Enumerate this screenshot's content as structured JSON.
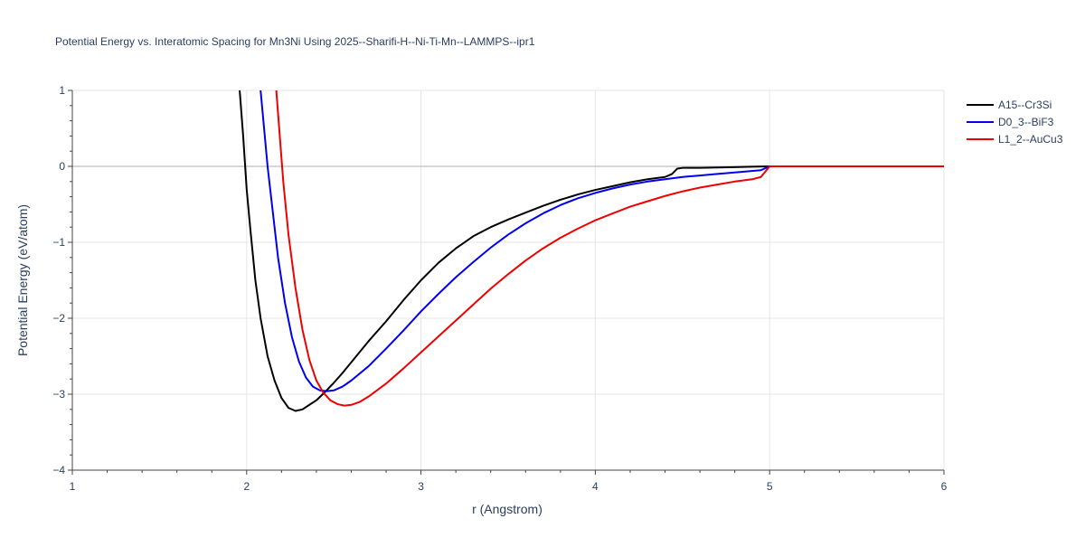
{
  "chart_data": {
    "type": "line",
    "title": "Potential Energy vs. Interatomic Spacing for Mn3Ni Using 2025--Sharifi-H--Ni-Ti-Mn--LAMMPS--ipr1",
    "xlabel": "r (Angstrom)",
    "ylabel": "Potential Energy (eV/atom)",
    "xlim": [
      1,
      6
    ],
    "ylim": [
      -4,
      1
    ],
    "xticks": [
      1,
      2,
      3,
      4,
      5,
      6
    ],
    "xtick_labels": [
      "1",
      "2",
      "3",
      "4",
      "5",
      "6"
    ],
    "yticks": [
      1,
      0,
      -1,
      -2,
      -3,
      -4
    ],
    "ytick_labels": [
      "1",
      "0",
      "−1",
      "−2",
      "−3",
      "−4"
    ],
    "grid": true,
    "legend_position": "top-right",
    "series": [
      {
        "name": "A15--Cr3Si",
        "color": "#000000",
        "x": [
          1.96,
          1.98,
          2.0,
          2.02,
          2.05,
          2.08,
          2.12,
          2.16,
          2.2,
          2.24,
          2.28,
          2.32,
          2.36,
          2.4,
          2.45,
          2.5,
          2.55,
          2.6,
          2.7,
          2.8,
          2.9,
          3.0,
          3.1,
          3.2,
          3.3,
          3.4,
          3.5,
          3.6,
          3.7,
          3.8,
          3.9,
          4.0,
          4.1,
          4.2,
          4.3,
          4.4,
          4.44,
          4.47,
          4.5,
          4.6,
          4.7,
          4.8,
          4.9,
          5.0,
          5.5,
          6.0
        ],
        "y": [
          1.0,
          0.4,
          -0.3,
          -0.8,
          -1.5,
          -2.0,
          -2.5,
          -2.82,
          -3.05,
          -3.18,
          -3.22,
          -3.2,
          -3.14,
          -3.08,
          -2.97,
          -2.85,
          -2.72,
          -2.58,
          -2.3,
          -2.04,
          -1.76,
          -1.5,
          -1.27,
          -1.08,
          -0.92,
          -0.8,
          -0.7,
          -0.61,
          -0.52,
          -0.44,
          -0.37,
          -0.31,
          -0.26,
          -0.21,
          -0.17,
          -0.14,
          -0.1,
          -0.03,
          -0.02,
          -0.02,
          -0.015,
          -0.01,
          -0.005,
          0.0,
          0.0,
          0.0
        ]
      },
      {
        "name": "D0_3--BiF3",
        "color": "#0000ee",
        "x": [
          2.08,
          2.1,
          2.12,
          2.15,
          2.18,
          2.22,
          2.26,
          2.3,
          2.34,
          2.38,
          2.42,
          2.46,
          2.5,
          2.55,
          2.6,
          2.7,
          2.8,
          2.9,
          3.0,
          3.1,
          3.2,
          3.3,
          3.4,
          3.5,
          3.6,
          3.7,
          3.8,
          3.9,
          4.0,
          4.1,
          4.2,
          4.3,
          4.4,
          4.5,
          4.6,
          4.7,
          4.8,
          4.95,
          5.0,
          5.5,
          6.0
        ],
        "y": [
          1.0,
          0.5,
          0.0,
          -0.6,
          -1.2,
          -1.8,
          -2.25,
          -2.57,
          -2.78,
          -2.9,
          -2.95,
          -2.96,
          -2.95,
          -2.9,
          -2.82,
          -2.63,
          -2.4,
          -2.16,
          -1.91,
          -1.68,
          -1.46,
          -1.26,
          -1.07,
          -0.9,
          -0.75,
          -0.62,
          -0.51,
          -0.42,
          -0.35,
          -0.29,
          -0.24,
          -0.2,
          -0.17,
          -0.14,
          -0.12,
          -0.1,
          -0.08,
          -0.05,
          0.0,
          0.0,
          0.0
        ]
      },
      {
        "name": "L1_2--AuCu3",
        "color": "#ee0000",
        "x": [
          2.17,
          2.19,
          2.21,
          2.24,
          2.28,
          2.32,
          2.36,
          2.4,
          2.44,
          2.48,
          2.52,
          2.56,
          2.6,
          2.65,
          2.7,
          2.8,
          2.9,
          3.0,
          3.1,
          3.2,
          3.3,
          3.4,
          3.5,
          3.6,
          3.7,
          3.8,
          3.9,
          4.0,
          4.1,
          4.2,
          4.3,
          4.4,
          4.5,
          4.6,
          4.7,
          4.8,
          4.9,
          4.95,
          5.0,
          5.5,
          6.0
        ],
        "y": [
          1.0,
          0.4,
          -0.2,
          -0.9,
          -1.6,
          -2.15,
          -2.55,
          -2.82,
          -2.98,
          -3.08,
          -3.13,
          -3.15,
          -3.14,
          -3.1,
          -3.03,
          -2.86,
          -2.66,
          -2.45,
          -2.24,
          -2.03,
          -1.82,
          -1.61,
          -1.42,
          -1.24,
          -1.08,
          -0.94,
          -0.82,
          -0.71,
          -0.62,
          -0.53,
          -0.46,
          -0.39,
          -0.33,
          -0.28,
          -0.24,
          -0.2,
          -0.17,
          -0.14,
          0.0,
          0.0,
          0.0
        ]
      }
    ]
  }
}
